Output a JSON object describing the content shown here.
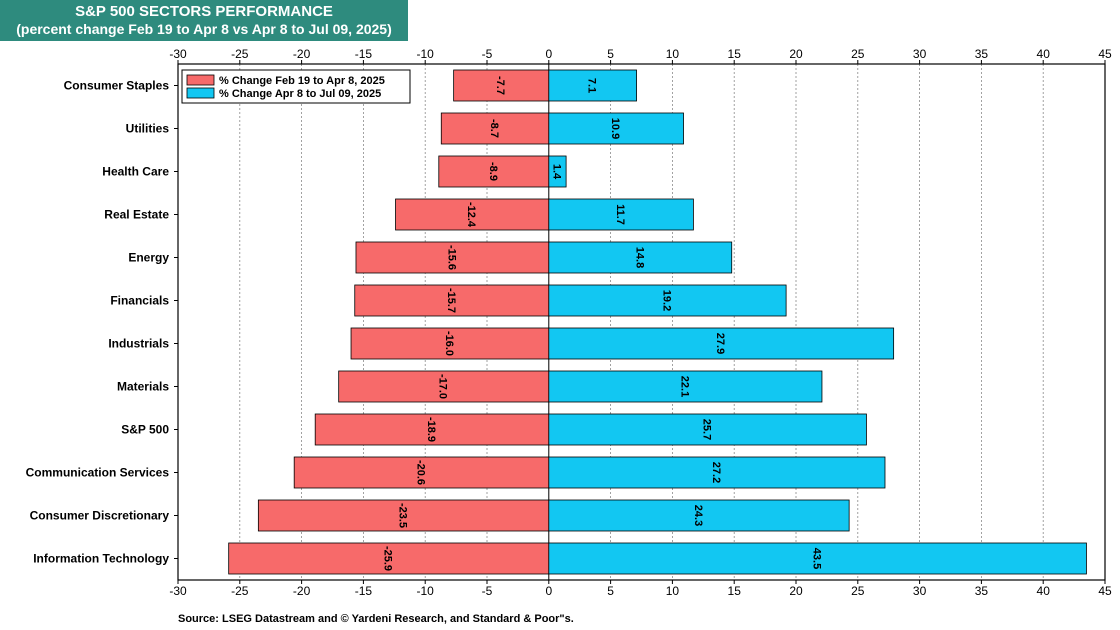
{
  "header": {
    "title_line1": "S&P 500 SECTORS PERFORMANCE",
    "title_line2": "(percent change Feb 19 to Apr 8 vs Apr 8 to Jul 09, 2025)"
  },
  "footer": {
    "source": "Source: LSEG Datastream and © Yardeni Research, and Standard & Poor\"s."
  },
  "colors": {
    "series1": "#f76a6a",
    "series2": "#12c7f2",
    "title_bg": "#2e8b7e"
  },
  "chart_data": {
    "type": "bar",
    "orientation": "horizontal",
    "title": "S&P 500 SECTORS PERFORMANCE",
    "subtitle": "(percent change Feb 19 to Apr 8 vs Apr 8 to Jul 09, 2025)",
    "categories": [
      "Consumer Staples",
      "Utilities",
      "Health Care",
      "Real Estate",
      "Energy",
      "Financials",
      "Industrials",
      "Materials",
      "S&P 500",
      "Communication Services",
      "Consumer Discretionary",
      "Information Technology"
    ],
    "series": [
      {
        "name": "% Change Feb 19 to Apr 8, 2025",
        "values": [
          -7.7,
          -8.7,
          -8.9,
          -12.4,
          -15.6,
          -15.7,
          -16.0,
          -17.0,
          -18.9,
          -20.6,
          -23.5,
          -25.9
        ],
        "labels": [
          "-7.7",
          "-8.7",
          "-8.9",
          "-12.4",
          "-15.6",
          "-15.7",
          "-16.0",
          "-17.0",
          "-18.9",
          "-20.6",
          "-23.5",
          "-25.9"
        ]
      },
      {
        "name": "% Change Apr 8 to Jul 09, 2025",
        "values": [
          7.1,
          10.9,
          1.4,
          11.7,
          14.8,
          19.2,
          27.9,
          22.1,
          25.7,
          27.2,
          24.3,
          43.5
        ],
        "labels": [
          "7.1",
          "10.9",
          "1.4",
          "11.7",
          "14.8",
          "19.2",
          "27.9",
          "22.1",
          "25.7",
          "27.2",
          "24.3",
          "43.5"
        ]
      }
    ],
    "xlim": [
      -30,
      45
    ],
    "xticks": [
      "-30",
      "-25",
      "-20",
      "-15",
      "-10",
      "-5",
      "0",
      "5",
      "10",
      "15",
      "20",
      "25",
      "30",
      "35",
      "40",
      "45"
    ],
    "grid": true,
    "legend_position": "top-left"
  }
}
